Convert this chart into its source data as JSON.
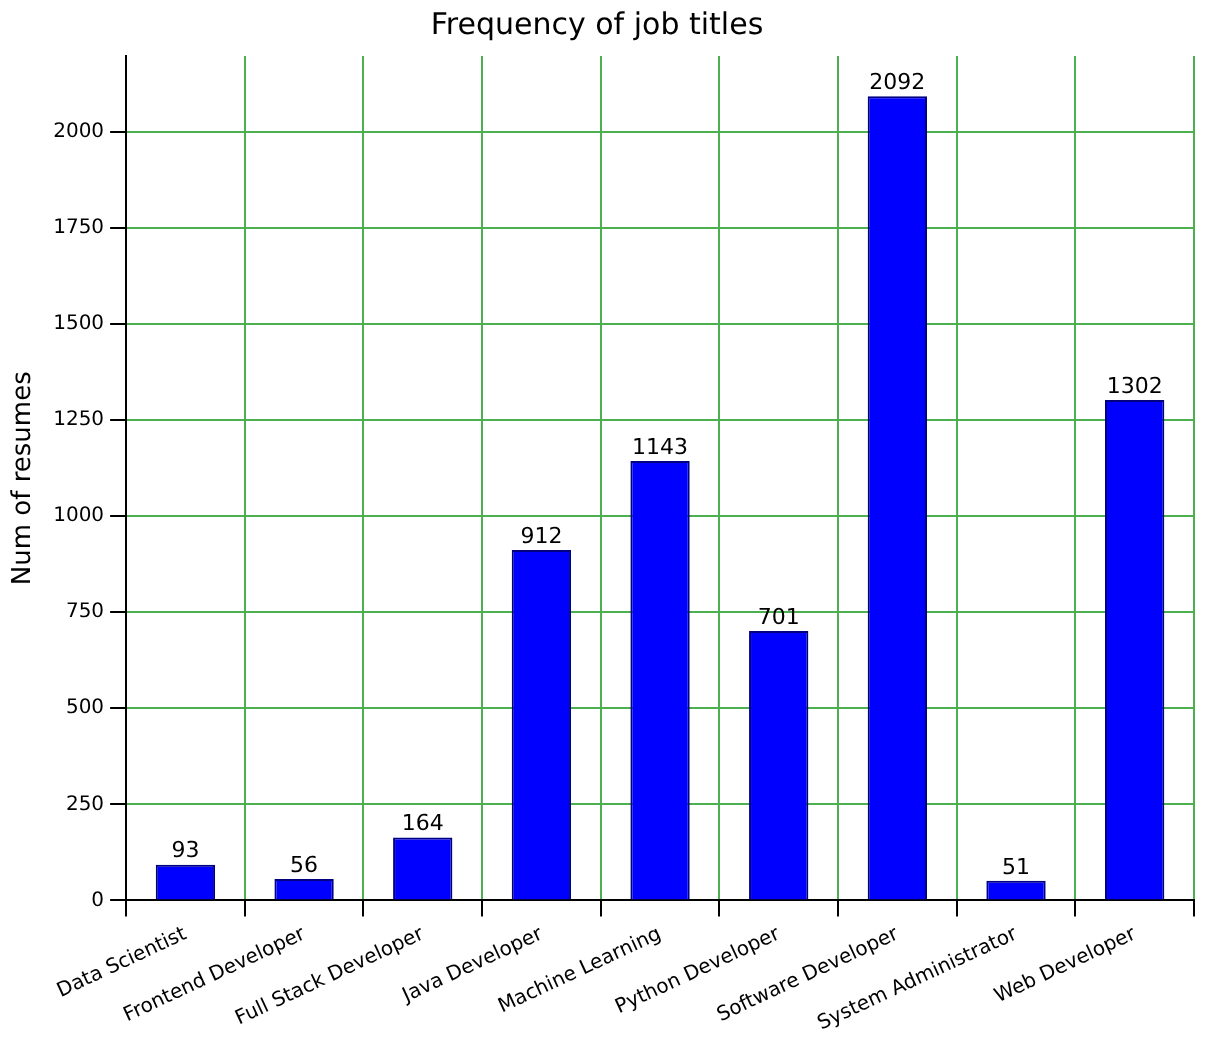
{
  "chart_data": {
    "type": "bar",
    "title": "Frequency of job titles",
    "ylabel": "Num of resumes",
    "categories": [
      "Data Scientist",
      "Frontend Developer",
      "Full Stack Developer",
      "Java Developer",
      "Machine Learning",
      "Python Developer",
      "Software Developer",
      "System Administrator",
      "Web Developer"
    ],
    "values": [
      93,
      56,
      164,
      912,
      1143,
      701,
      2092,
      51,
      1302
    ],
    "color": "#0000ff",
    "ylim": [
      0,
      2197
    ],
    "yticks": [
      0,
      250,
      500,
      750,
      1000,
      1250,
      1500,
      1750,
      2000
    ],
    "grid": true,
    "data_labels": true,
    "legend": false
  }
}
